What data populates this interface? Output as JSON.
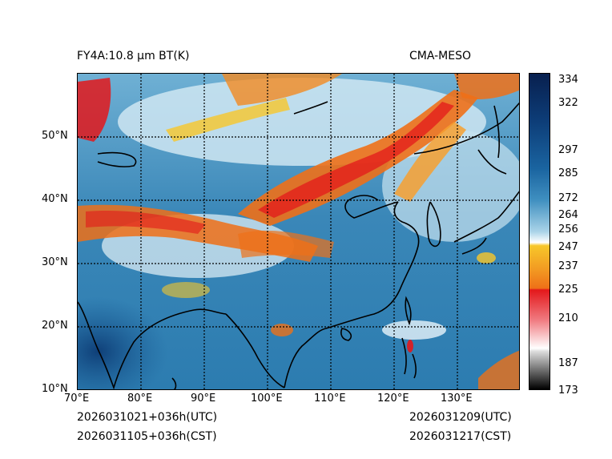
{
  "header": {
    "left_title": "FY4A:10.8 µm BT(K)",
    "right_title": "CMA-MESO"
  },
  "footer": {
    "init_utc": "2026031021+036h(UTC)",
    "init_cst": "2026031105+036h(CST)",
    "valid_utc": "2026031209(UTC)",
    "valid_cst": "2026031217(CST)"
  },
  "map": {
    "lon_labels": [
      "70°E",
      "80°E",
      "90°E",
      "100°E",
      "110°E",
      "120°E",
      "130°E"
    ],
    "lat_labels": [
      "50°N",
      "40°N",
      "30°N",
      "20°N",
      "10°N"
    ],
    "lon_range": [
      70,
      140
    ],
    "lat_range": [
      10,
      60
    ]
  },
  "colorbar": {
    "ticks": [
      "334",
      "322",
      "297",
      "285",
      "272",
      "264",
      "256",
      "247",
      "237",
      "225",
      "210",
      "187",
      "173"
    ],
    "tick_values": [
      334,
      322,
      297,
      285,
      272,
      264,
      256,
      247,
      237,
      225,
      210,
      187,
      173
    ],
    "colors": {
      "high": "#08204f",
      "mid": "#2a78ad",
      "light": "#d8ecf5",
      "yellow": "#f7c72a",
      "orange": "#ee7018",
      "red": "#e3181b",
      "low": "#000000"
    }
  }
}
